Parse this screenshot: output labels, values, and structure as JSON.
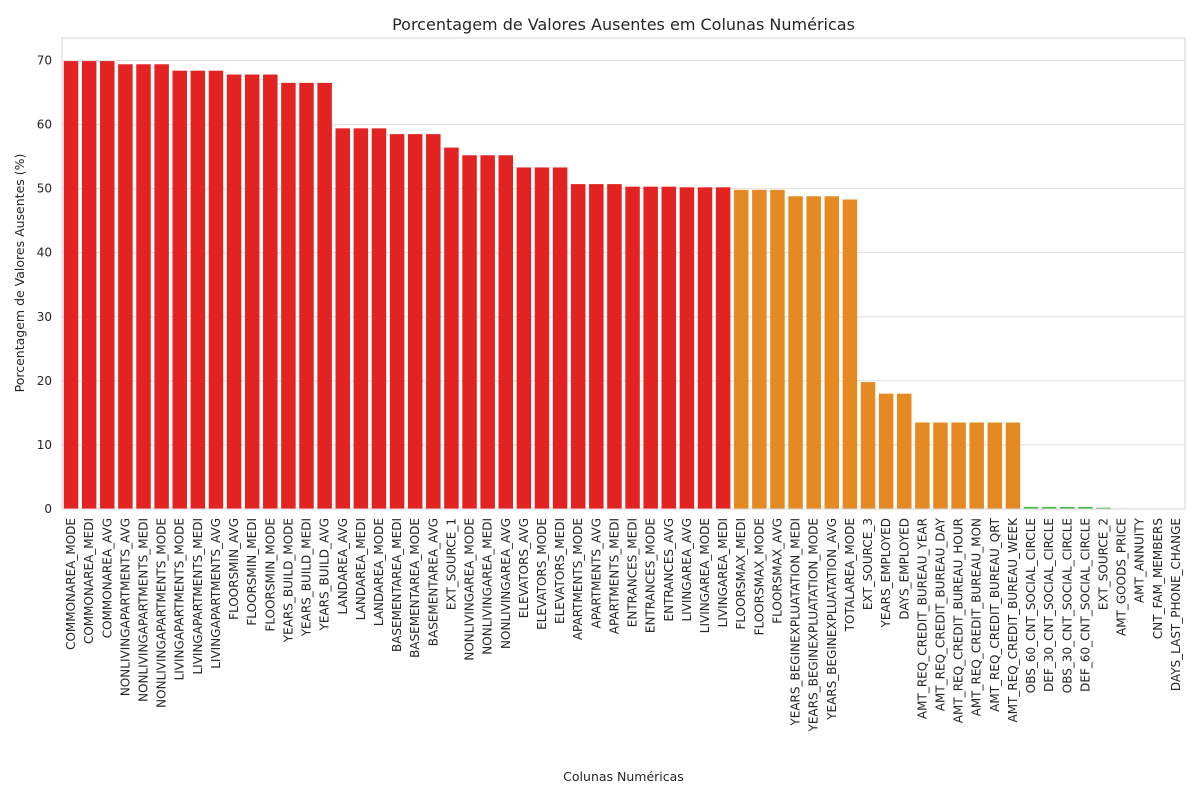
{
  "chart_data": {
    "type": "bar",
    "title": "Porcentagem de Valores Ausentes em Colunas Numéricas",
    "xlabel": "Colunas Numéricas",
    "ylabel": "Porcentagem de Valores Ausentes (%)",
    "ylim": [
      0,
      73.5
    ],
    "yticks": [
      0,
      10,
      20,
      30,
      40,
      50,
      60,
      70
    ],
    "grid": "horizontal",
    "colors": {
      "high": "#e32322",
      "medium": "#e58a22",
      "low": "#4cbb4c"
    },
    "categories": [
      "COMMONAREA_MODE",
      "COMMONAREA_MEDI",
      "COMMONAREA_AVG",
      "NONLIVINGAPARTMENTS_AVG",
      "NONLIVINGAPARTMENTS_MEDI",
      "NONLIVINGAPARTMENTS_MODE",
      "LIVINGAPARTMENTS_MODE",
      "LIVINGAPARTMENTS_MEDI",
      "LIVINGAPARTMENTS_AVG",
      "FLOORSMIN_AVG",
      "FLOORSMIN_MEDI",
      "FLOORSMIN_MODE",
      "YEARS_BUILD_MODE",
      "YEARS_BUILD_MEDI",
      "YEARS_BUILD_AVG",
      "LANDAREA_AVG",
      "LANDAREA_MEDI",
      "LANDAREA_MODE",
      "BASEMENTAREA_MEDI",
      "BASEMENTAREA_MODE",
      "BASEMENTAREA_AVG",
      "EXT_SOURCE_1",
      "NONLIVINGAREA_MODE",
      "NONLIVINGAREA_MEDI",
      "NONLIVINGAREA_AVG",
      "ELEVATORS_AVG",
      "ELEVATORS_MODE",
      "ELEVATORS_MEDI",
      "APARTMENTS_MODE",
      "APARTMENTS_AVG",
      "APARTMENTS_MEDI",
      "ENTRANCES_MEDI",
      "ENTRANCES_MODE",
      "ENTRANCES_AVG",
      "LIVINGAREA_AVG",
      "LIVINGAREA_MODE",
      "LIVINGAREA_MEDI",
      "FLOORSMAX_MEDI",
      "FLOORSMAX_MODE",
      "FLOORSMAX_AVG",
      "YEARS_BEGINEXPLUATATION_MEDI",
      "YEARS_BEGINEXPLUATATION_MODE",
      "YEARS_BEGINEXPLUATATION_AVG",
      "TOTALAREA_MODE",
      "EXT_SOURCE_3",
      "YEARS_EMPLOYED",
      "DAYS_EMPLOYED",
      "AMT_REQ_CREDIT_BUREAU_YEAR",
      "AMT_REQ_CREDIT_BUREAU_DAY",
      "AMT_REQ_CREDIT_BUREAU_HOUR",
      "AMT_REQ_CREDIT_BUREAU_MON",
      "AMT_REQ_CREDIT_BUREAU_QRT",
      "AMT_REQ_CREDIT_BUREAU_WEEK",
      "OBS_60_CNT_SOCIAL_CIRCLE",
      "DEF_30_CNT_SOCIAL_CIRCLE",
      "OBS_30_CNT_SOCIAL_CIRCLE",
      "DEF_60_CNT_SOCIAL_CIRCLE",
      "EXT_SOURCE_2",
      "AMT_GOODS_PRICE",
      "AMT_ANNUITY",
      "CNT_FAM_MEMBERS",
      "DAYS_LAST_PHONE_CHANGE"
    ],
    "values": [
      69.9,
      69.9,
      69.9,
      69.4,
      69.4,
      69.4,
      68.4,
      68.4,
      68.4,
      67.8,
      67.8,
      67.8,
      66.5,
      66.5,
      66.5,
      59.4,
      59.4,
      59.4,
      58.5,
      58.5,
      58.5,
      56.4,
      55.2,
      55.2,
      55.2,
      53.3,
      53.3,
      53.3,
      50.7,
      50.7,
      50.7,
      50.3,
      50.3,
      50.3,
      50.2,
      50.2,
      50.2,
      49.8,
      49.8,
      49.8,
      48.8,
      48.8,
      48.8,
      48.3,
      19.8,
      18.0,
      18.0,
      13.5,
      13.5,
      13.5,
      13.5,
      13.5,
      13.5,
      0.33,
      0.33,
      0.33,
      0.33,
      0.21,
      0.09,
      0.004,
      0.001,
      0.0003
    ],
    "levels": [
      "high",
      "high",
      "high",
      "high",
      "high",
      "high",
      "high",
      "high",
      "high",
      "high",
      "high",
      "high",
      "high",
      "high",
      "high",
      "high",
      "high",
      "high",
      "high",
      "high",
      "high",
      "high",
      "high",
      "high",
      "high",
      "high",
      "high",
      "high",
      "high",
      "high",
      "high",
      "high",
      "high",
      "high",
      "high",
      "high",
      "high",
      "medium",
      "medium",
      "medium",
      "medium",
      "medium",
      "medium",
      "medium",
      "medium",
      "medium",
      "medium",
      "medium",
      "medium",
      "medium",
      "medium",
      "medium",
      "medium",
      "low",
      "low",
      "low",
      "low",
      "low",
      "low",
      "low",
      "low",
      "low"
    ]
  }
}
